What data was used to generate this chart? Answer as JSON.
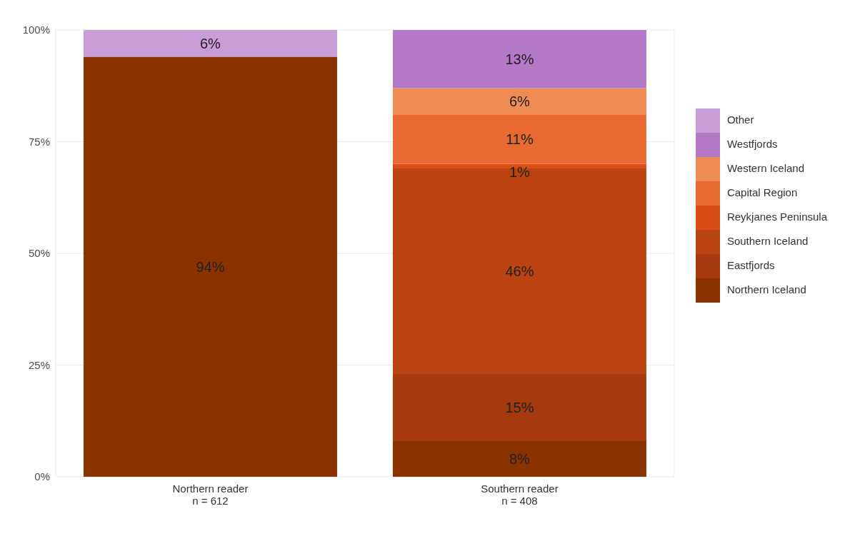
{
  "chart_data": {
    "type": "bar",
    "stacked": true,
    "categories": [
      "Northern reader\nn = 612",
      "Southern reader\nn = 408"
    ],
    "series": [
      {
        "name": "Northern Iceland",
        "color": "#8b3300",
        "values": [
          94,
          8
        ],
        "value_labels": [
          "94%",
          "8%"
        ]
      },
      {
        "name": "Eastfjords",
        "color": "#a63a0f",
        "values": [
          0,
          15
        ],
        "value_labels": [
          null,
          "15%"
        ]
      },
      {
        "name": "Southern Iceland",
        "color": "#b94412",
        "values": [
          0,
          46
        ],
        "value_labels": [
          null,
          "46%"
        ]
      },
      {
        "name": "Reykjanes Peninsula",
        "color": "#d94e14",
        "values": [
          0,
          1
        ],
        "value_labels": [
          null,
          "1%"
        ]
      },
      {
        "name": "Capital Region",
        "color": "#e86a33",
        "values": [
          0,
          11
        ],
        "value_labels": [
          null,
          "11%"
        ]
      },
      {
        "name": "Western Iceland",
        "color": "#ef8b55",
        "values": [
          0,
          6
        ],
        "value_labels": [
          null,
          "6%"
        ]
      },
      {
        "name": "Westfjords",
        "color": "#b378c6",
        "values": [
          0,
          13
        ],
        "value_labels": [
          null,
          "13%"
        ]
      },
      {
        "name": "Other",
        "color": "#c89dd8",
        "values": [
          6,
          0
        ],
        "value_labels": [
          "6%",
          null
        ]
      }
    ],
    "ylim": [
      0,
      100
    ],
    "yticks": [
      {
        "value": 0,
        "label": "0%"
      },
      {
        "value": 25,
        "label": "25%"
      },
      {
        "value": 50,
        "label": "50%"
      },
      {
        "value": 75,
        "label": "75%"
      },
      {
        "value": 100,
        "label": "100%"
      }
    ],
    "grid": true,
    "legend": "right"
  }
}
